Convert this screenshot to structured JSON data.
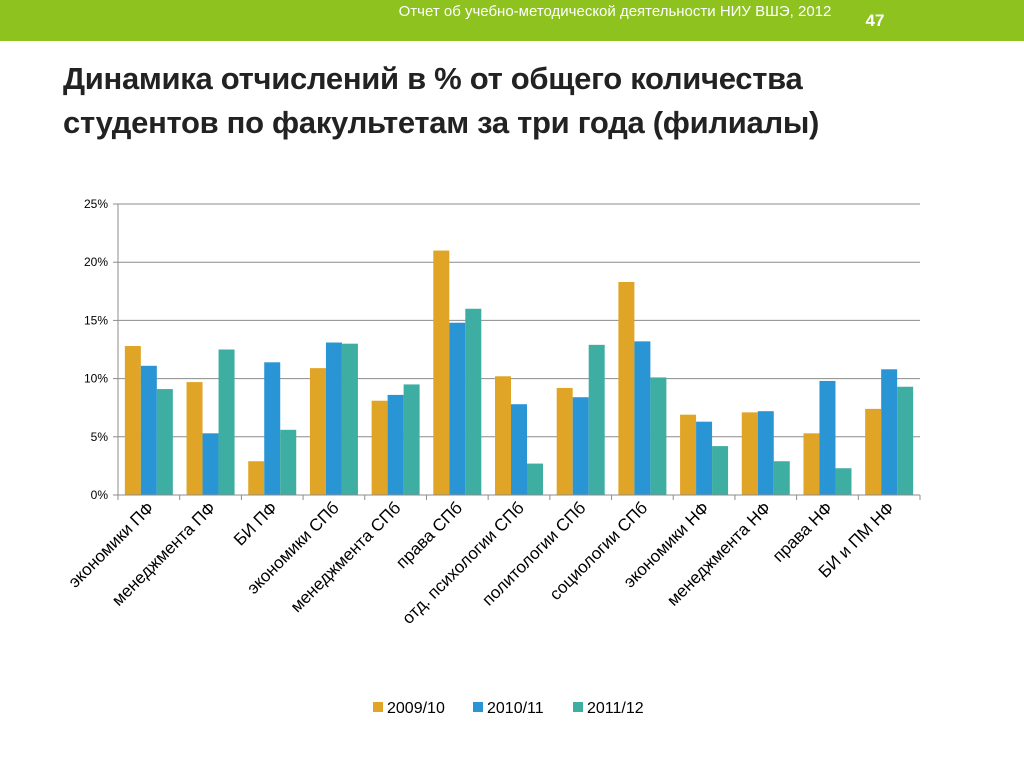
{
  "header": {
    "report_title": "Отчет об учебно-методической деятельности НИУ ВШЭ, 2012",
    "page_number": "47",
    "bar_color": "#8dc21f"
  },
  "slide": {
    "title": "Динамика отчислений в % от общего количества студентов по факультетам за три года (филиалы)"
  },
  "chart_data": {
    "type": "bar",
    "title": "",
    "xlabel": "",
    "ylabel": "",
    "ylim": [
      0,
      25
    ],
    "yticks": [
      0,
      5,
      10,
      15,
      20,
      25
    ],
    "ytick_labels": [
      "0%",
      "5%",
      "10%",
      "15%",
      "20%",
      "25%"
    ],
    "grid": true,
    "legend_position": "bottom",
    "categories": [
      "экономики ПФ",
      "менеджмента ПФ",
      "БИ ПФ",
      "экономики СПб",
      "менеджмента СПб",
      "права СПб",
      "отд. психологии СПб",
      "политологии СПб",
      "социологии СПб",
      "экономики НФ",
      "менеджмента НФ",
      "права НФ",
      "БИ и ПМ НФ"
    ],
    "series": [
      {
        "name": "2009/10",
        "color": "#e0a526",
        "values": [
          12.8,
          9.7,
          2.9,
          10.9,
          8.1,
          21.0,
          10.2,
          9.2,
          18.3,
          6.9,
          7.1,
          5.3,
          7.4
        ]
      },
      {
        "name": "2010/11",
        "color": "#2a95d5",
        "values": [
          11.1,
          5.3,
          11.4,
          13.1,
          8.6,
          14.8,
          7.8,
          8.4,
          13.2,
          6.3,
          7.2,
          9.8,
          10.8
        ]
      },
      {
        "name": "2011/12",
        "color": "#3eada2",
        "values": [
          9.1,
          12.5,
          5.6,
          13.0,
          9.5,
          16.0,
          2.7,
          12.9,
          10.1,
          4.2,
          2.9,
          2.3,
          9.3
        ]
      }
    ]
  }
}
